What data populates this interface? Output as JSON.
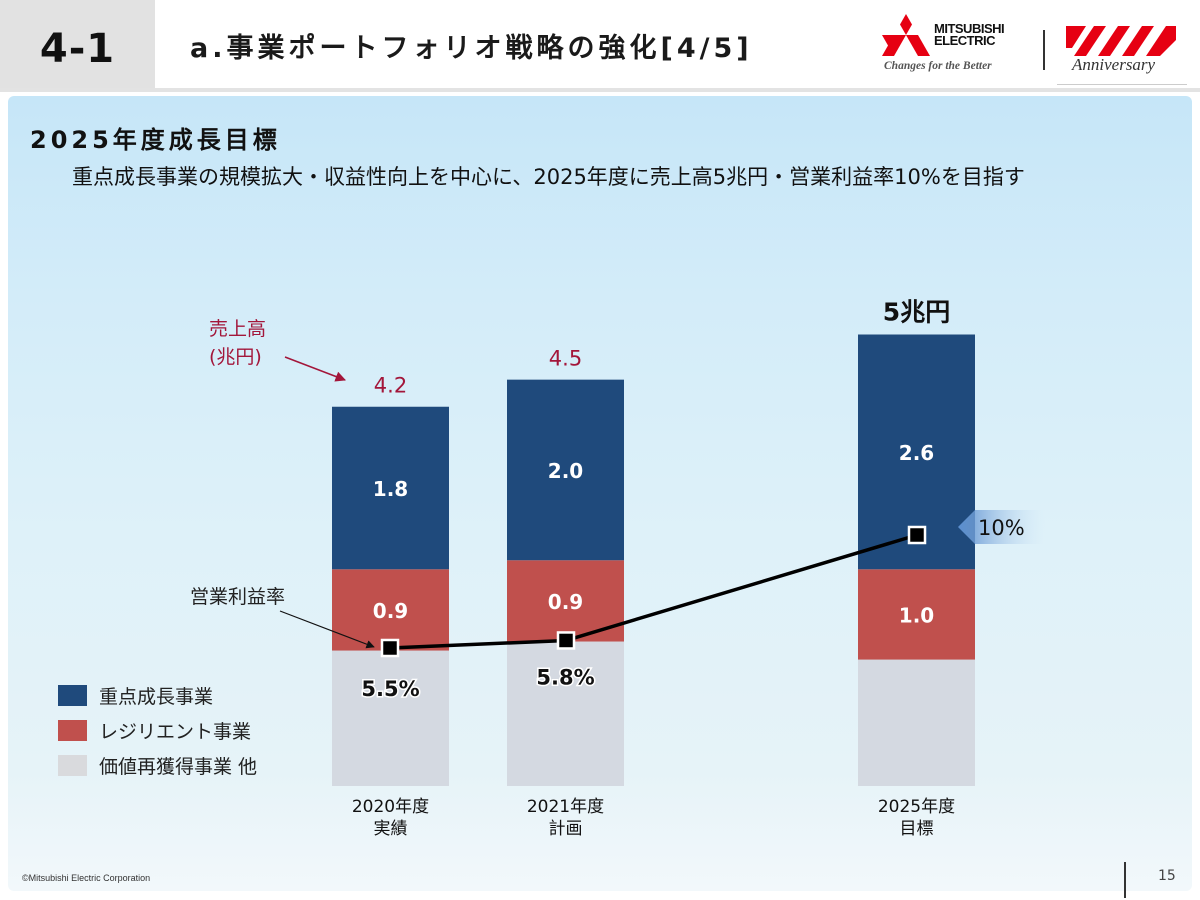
{
  "header": {
    "section_number": "4-1",
    "title": "a.事業ポートフォリオ戦略の強化[4/5]",
    "logo": {
      "brand_line1": "MITSUBISHI",
      "brand_line2": "ELECTRIC",
      "tagline": "Changes for the Better",
      "anniversary_text": "Anniversary",
      "logo_icon": "three-diamonds-icon",
      "anniversary_icon": "red-slash-stripes-icon"
    }
  },
  "content": {
    "subtitle": "2025年度成長目標",
    "description": "重点成長事業の規模拡大・収益性向上を中心に、2025年度に売上高5兆円・営業利益率10%を目指す"
  },
  "colors": {
    "focus_growth": "#1f4a7c",
    "resilient": "#c0504d",
    "other": "#d4d9e1",
    "annotation_red": "#a3163a",
    "line": "#000000"
  },
  "chart_data": {
    "type": "bar",
    "stacked": true,
    "categories": [
      "2020年度\n実績",
      "2021年度\n計画",
      "2025年度\n目標"
    ],
    "category_lines": [
      [
        "2020年度",
        "実績"
      ],
      [
        "2021年度",
        "計画"
      ],
      [
        "2025年度",
        "目標"
      ]
    ],
    "unit": "兆円",
    "series": [
      {
        "name": "価値再獲得事業 他",
        "values": [
          1.5,
          1.6,
          1.4
        ],
        "labels": [
          "",
          "",
          ""
        ]
      },
      {
        "name": "レジリエント事業",
        "values": [
          0.9,
          0.9,
          1.0
        ],
        "labels": [
          "0.9",
          "0.9",
          "1.0"
        ]
      },
      {
        "name": "重点成長事業",
        "values": [
          1.8,
          2.0,
          2.6
        ],
        "labels": [
          "1.8",
          "2.0",
          "2.6"
        ]
      }
    ],
    "totals": [
      4.2,
      4.5,
      5.0
    ],
    "total_labels": [
      "4.2",
      "4.5",
      "5兆円"
    ],
    "operating_margin": {
      "name": "営業利益率",
      "values": [
        5.5,
        5.8,
        10.0
      ],
      "labels": [
        "5.5%",
        "5.8%",
        "10%"
      ],
      "type": "line"
    },
    "annotations": {
      "sales_label_line1": "売上高",
      "sales_label_line2": "(兆円)",
      "margin_label": "営業利益率"
    },
    "legend": [
      {
        "name": "重点成長事業",
        "color_key": "focus_growth"
      },
      {
        "name": "レジリエント事業",
        "color_key": "resilient"
      },
      {
        "name": "価値再獲得事業 他",
        "color_key": "other"
      }
    ],
    "legend_position": "bottom-left",
    "ylim": [
      0,
      5.0
    ],
    "grid": false
  },
  "footer": {
    "copyright": "©Mitsubishi Electric Corporation",
    "page_number": "15"
  }
}
